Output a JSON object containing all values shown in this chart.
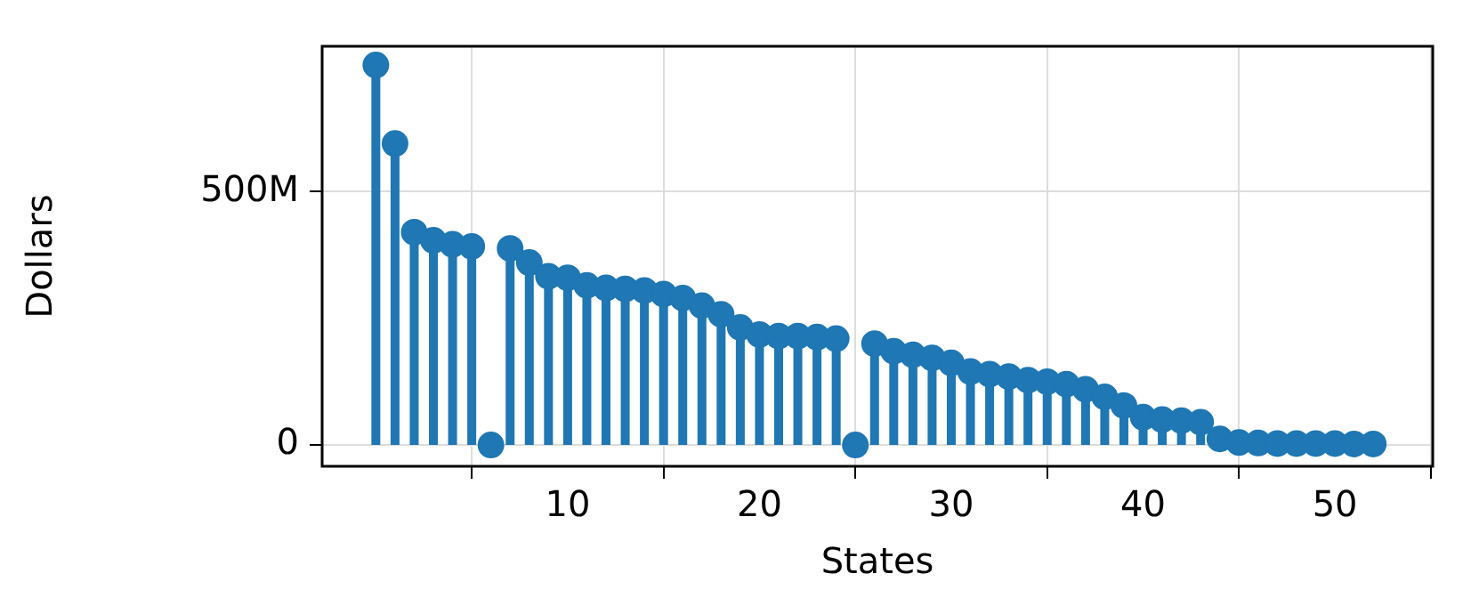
{
  "chart_data": {
    "type": "lollipop",
    "xlabel": "States",
    "ylabel": "Dollars",
    "x": [
      0,
      1,
      2,
      3,
      4,
      5,
      6,
      7,
      8,
      9,
      10,
      11,
      12,
      13,
      14,
      15,
      16,
      17,
      18,
      19,
      20,
      21,
      22,
      23,
      24,
      25,
      26,
      27,
      28,
      29,
      30,
      31,
      32,
      33,
      34,
      35,
      36,
      37,
      38,
      39,
      40,
      41,
      42,
      43,
      44,
      45,
      46,
      47,
      48,
      49,
      50,
      51,
      52
    ],
    "values": [
      750000000,
      595000000,
      420000000,
      404000000,
      396000000,
      392000000,
      0,
      388000000,
      360000000,
      333000000,
      330000000,
      315000000,
      310000000,
      308000000,
      305000000,
      298000000,
      290000000,
      275000000,
      258000000,
      232000000,
      218000000,
      215000000,
      215000000,
      213000000,
      210000000,
      0,
      200000000,
      185000000,
      178000000,
      172000000,
      162000000,
      145000000,
      140000000,
      135000000,
      128000000,
      125000000,
      120000000,
      110000000,
      95000000,
      78000000,
      55000000,
      50000000,
      48000000,
      45000000,
      12000000,
      5000000,
      4000000,
      3000000,
      3000000,
      3000000,
      3000000,
      2000000,
      2000000
    ],
    "color": "#1f77b4",
    "marker": "circle",
    "grid": true,
    "xlim": [
      -2.8,
      55.1
    ],
    "xticks": [
      10,
      20,
      30,
      40,
      50
    ],
    "ylim": [
      -42000000,
      787000000
    ],
    "yticks": [
      0,
      {
        "value": 500000000,
        "label": "500M"
      }
    ]
  }
}
